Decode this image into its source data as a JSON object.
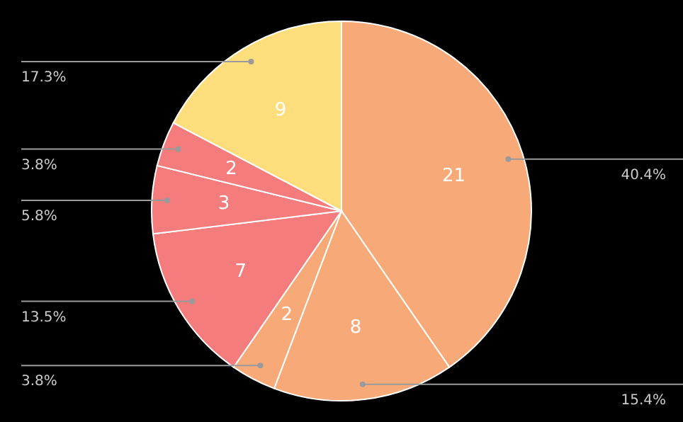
{
  "chart_data": {
    "type": "pie",
    "categories": [
      null,
      null,
      null,
      null,
      null,
      null,
      null
    ],
    "values": [
      21,
      8,
      2,
      7,
      3,
      2,
      9
    ],
    "colors": [
      "#f8a978",
      "#f8a978",
      "#f8a978",
      "#f47c7c",
      "#f47c7c",
      "#f47c7c",
      "#fddd7c"
    ],
    "data_labels": true,
    "annotations": [
      "40.4%",
      "15.4%",
      "3.8%",
      "13.5%",
      "5.8%",
      "3.8%",
      "17.3%"
    ]
  }
}
